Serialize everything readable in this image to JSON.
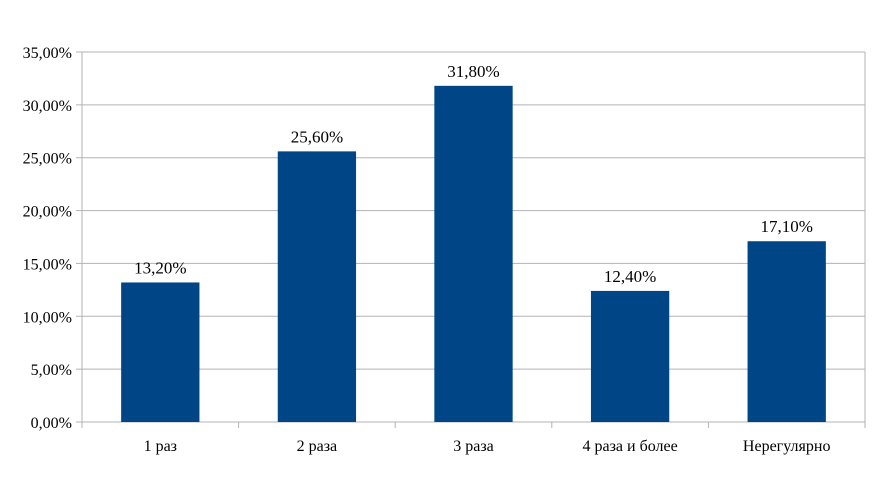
{
  "chart_data": {
    "type": "bar",
    "categories": [
      "1 раз",
      "2 раза",
      "3 раза",
      "4 раза и более",
      "Нерегулярно"
    ],
    "values": [
      13.2,
      25.6,
      31.8,
      12.4,
      17.1
    ],
    "data_labels": [
      "13,20%",
      "25,60%",
      "31,80%",
      "12,40%",
      "17,10%"
    ],
    "yticks": [
      0,
      5,
      10,
      15,
      20,
      25,
      30,
      35
    ],
    "ytick_labels": [
      "0,00%",
      "5,00%",
      "10,00%",
      "15,00%",
      "20,00%",
      "25,00%",
      "30,00%",
      "35,00%"
    ],
    "ylim": [
      0,
      35
    ],
    "grid": true,
    "legend": "none",
    "title": "",
    "xlabel": "",
    "ylabel": "",
    "bar_color": "#004586"
  }
}
